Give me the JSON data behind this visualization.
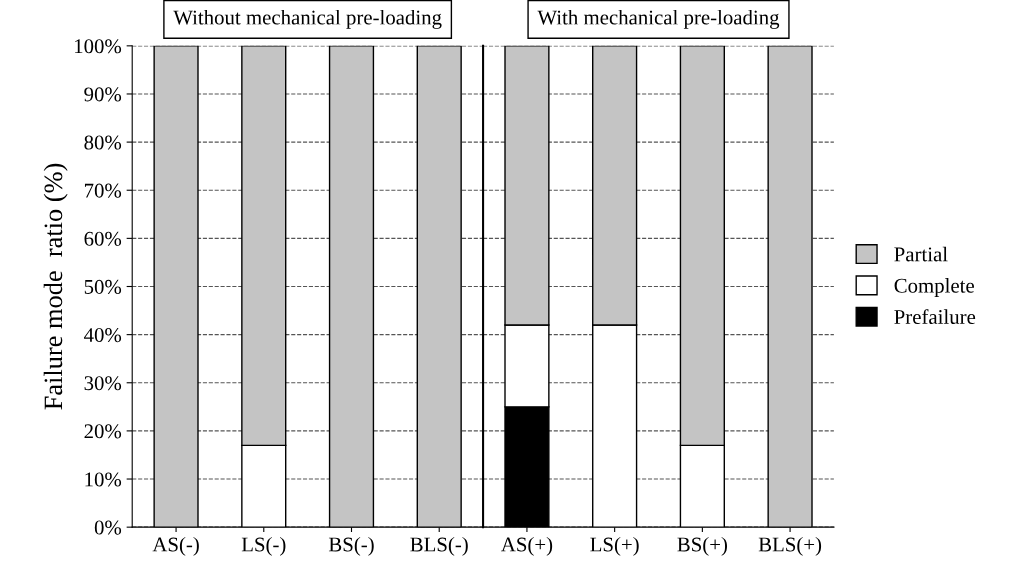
{
  "chart_data": [
    {
      "type": "bar",
      "stacked": true,
      "title": "Without mechanical pre-loading",
      "ylabel": "Failure mode  ratio (%)",
      "categories": [
        "AS(-)",
        "LS(-)",
        "BS(-)",
        "BLS(-)"
      ],
      "series": [
        {
          "color": "#000000",
          "values": [
            0,
            0,
            0,
            0
          ]
        },
        {
          "color": "#ffffff",
          "values": [
            0,
            17,
            0,
            0
          ]
        },
        {
          "color": "#c4c4c4",
          "values": [
            100,
            83,
            100,
            100
          ]
        }
      ],
      "ylim": [
        0,
        100
      ],
      "yticks": [
        {
          "value": 0,
          "label": "0%"
        },
        {
          "value": 10,
          "label": "10%"
        },
        {
          "value": 20,
          "label": "20%"
        },
        {
          "value": 30,
          "label": "30%"
        },
        {
          "value": 40,
          "label": "40%"
        },
        {
          "value": 50,
          "label": "50%"
        },
        {
          "value": 60,
          "label": "60%"
        },
        {
          "value": 70,
          "label": "70%"
        },
        {
          "value": 80,
          "label": "80%"
        },
        {
          "value": 90,
          "label": "90%"
        },
        {
          "value": 100,
          "label": "100%"
        }
      ],
      "grid": "y"
    },
    {
      "type": "bar",
      "stacked": true,
      "title": "With mechanical pre-loading",
      "categories": [
        "AS(+)",
        "LS(+)",
        "BS(+)",
        "BLS(+)"
      ],
      "series": [
        {
          "name": "Prefailure",
          "color": "#000000",
          "values": [
            25,
            0,
            0,
            0
          ]
        },
        {
          "name": "Complete",
          "color": "#ffffff",
          "values": [
            17,
            42,
            17,
            0
          ]
        },
        {
          "name": "Partial",
          "color": "#c4c4c4",
          "values": [
            58,
            58,
            83,
            100
          ]
        }
      ],
      "ylim": [
        0,
        100
      ],
      "yticks": [
        {
          "value": 0,
          "label": null
        },
        {
          "value": 10,
          "label": null
        },
        {
          "value": 20,
          "label": null
        },
        {
          "value": 30,
          "label": null
        },
        {
          "value": 40,
          "label": null
        },
        {
          "value": 50,
          "label": null
        },
        {
          "value": 60,
          "label": null
        },
        {
          "value": 70,
          "label": null
        },
        {
          "value": 80,
          "label": null
        },
        {
          "value": 90,
          "label": null
        },
        {
          "value": 100,
          "label": null
        }
      ],
      "tick_labels": "x",
      "grid": "y",
      "legend": "right"
    }
  ]
}
